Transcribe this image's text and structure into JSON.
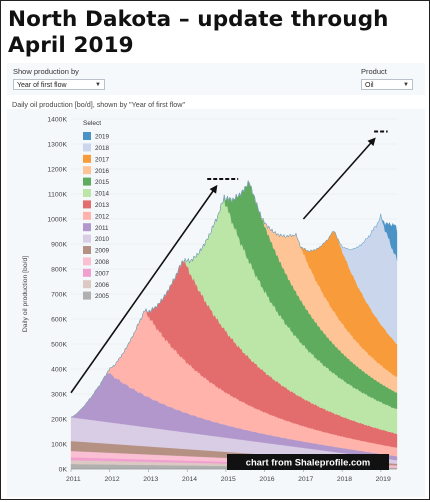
{
  "headline": "North Dakota – update through April 2019",
  "controls": {
    "group_label": "Show production by",
    "group_value": "Year of first flow",
    "product_label": "Product",
    "product_value": "Oil",
    "dropdown_icon": "chevron-down-icon"
  },
  "chart_data": {
    "type": "area",
    "stacked": true,
    "title": "Daily oil production [bo/d], shown by \"Year of first flow\"",
    "ylabel": "Daily oil production [bo/d]",
    "xlabel": "",
    "ylim": [
      0,
      1400
    ],
    "yunit": "K",
    "xlim": [
      "2011-01",
      "2019-06"
    ],
    "yticks": [
      "0K",
      "100K",
      "200K",
      "300K",
      "400K",
      "500K",
      "600K",
      "700K",
      "800K",
      "900K",
      "1000K",
      "1100K",
      "1200K",
      "1300K",
      "1400K"
    ],
    "xticks": [
      "2011",
      "2012",
      "2013",
      "2014",
      "2015",
      "2016",
      "2017",
      "2018",
      "2019"
    ],
    "grid": true,
    "legend": {
      "title": "Select",
      "position": "top-left",
      "items": [
        "2019",
        "2018",
        "2017",
        "2016",
        "2015",
        "2014",
        "2013",
        "2012",
        "2011",
        "2010",
        "2009",
        "2008",
        "2007",
        "2006",
        "2005"
      ]
    },
    "series": [
      {
        "name": "2005",
        "color": "#b0b0b0",
        "y0": 20,
        "y1": 4
      },
      {
        "name": "2006",
        "color": "#ddc9c3",
        "y0": 15,
        "y1": 3
      },
      {
        "name": "2007",
        "color": "#f19fcf",
        "y0": 12,
        "y1": 2
      },
      {
        "name": "2008",
        "color": "#fabfd2",
        "y0": 25,
        "y1": 5
      },
      {
        "name": "2009",
        "color": "#b59184",
        "y0": 40,
        "y1": 7
      },
      {
        "name": "2010",
        "color": "#d9cde5",
        "y0": 95,
        "y1": 14
      },
      {
        "name": "2011",
        "color": "#b297cc",
        "start": 0.0,
        "peak": 0.95,
        "value": 200,
        "half": 2.6,
        "floor": 0.06
      },
      {
        "name": "2012",
        "color": "#ffb3ab",
        "start": 0.9,
        "peak": 1.9,
        "value": 340,
        "half": 2.6,
        "floor": 0.07
      },
      {
        "name": "2013",
        "color": "#e26d6c",
        "start": 1.9,
        "peak": 2.9,
        "value": 400,
        "half": 2.7,
        "floor": 0.08
      },
      {
        "name": "2014",
        "color": "#bce6a8",
        "start": 2.9,
        "peak": 3.95,
        "value": 520,
        "half": 2.6,
        "floor": 0.1
      },
      {
        "name": "2015",
        "color": "#5fac5f",
        "start": 3.9,
        "peak": 4.6,
        "value": 320,
        "half": 2.4,
        "floor": 0.1
      },
      {
        "name": "2016",
        "color": "#ffc496",
        "start": 4.9,
        "peak": 5.8,
        "value": 230,
        "half": 2.0,
        "floor": 0.12
      },
      {
        "name": "2017",
        "color": "#f89b3b",
        "start": 5.9,
        "peak": 6.8,
        "value": 330,
        "half": 1.8,
        "floor": 0.15
      },
      {
        "name": "2018",
        "color": "#c9d6ec",
        "start": 6.9,
        "peak": 8.0,
        "value": 430,
        "half": 1.8,
        "floor": 0.2
      },
      {
        "name": "2019",
        "color": "#4b93c6",
        "start": 8.0,
        "peak": 8.35,
        "value": 120,
        "half": 2.0,
        "floor": 0.2
      }
    ],
    "annotations": {
      "peak_2015": {
        "date": "2014-12",
        "value": 1160
      },
      "peak_2019": {
        "date": "2019-01",
        "value": 1350
      },
      "arrow_1": {
        "from": [
          "2011-01",
          305
        ],
        "to": [
          "2014-10",
          1130
        ]
      },
      "arrow_2": {
        "from": [
          "2017-01",
          1000
        ],
        "to": [
          "2018-11",
          1320
        ]
      },
      "source": "chart from Shaleprofile.com"
    }
  }
}
